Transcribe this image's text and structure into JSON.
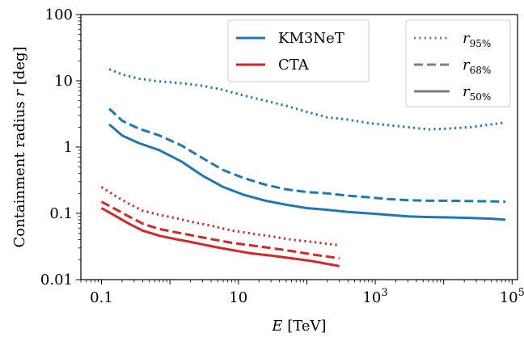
{
  "chart_data": {
    "type": "line",
    "xlabel": {
      "var": "E",
      "rest": " [TeV]"
    },
    "ylabel": {
      "pre": "Containment radius ",
      "var": "r",
      "post": " [deg]"
    },
    "xscale": "log",
    "yscale": "log",
    "xlim": [
      0.05,
      120000
    ],
    "ylim": [
      0.01,
      100
    ],
    "x_ticks": [
      {
        "value": 0.1,
        "label": "0.1"
      },
      {
        "value": 10,
        "label": "10"
      },
      {
        "value": 1000,
        "base": "10",
        "exp": "3"
      },
      {
        "value": 100000,
        "base": "10",
        "exp": "5"
      }
    ],
    "y_ticks": [
      {
        "value": 0.01,
        "label": "0.01"
      },
      {
        "value": 0.1,
        "label": "0.1"
      },
      {
        "value": 1,
        "label": "1"
      },
      {
        "value": 10,
        "label": "10"
      },
      {
        "value": 100,
        "label": "100"
      }
    ],
    "grid": false,
    "colors": {
      "KM3NeT": "#1f77b4",
      "CTA": "#d62728",
      "style_legend": "#808080"
    },
    "legend_experiment": {
      "placement": "top-center",
      "items": [
        {
          "label": "KM3NeT",
          "color": "#1f77b4"
        },
        {
          "label": "CTA",
          "color": "#d62728"
        }
      ]
    },
    "legend_linestyle": {
      "placement": "top-right",
      "items": [
        {
          "var": "r",
          "sub": "95%",
          "dash": "dotted"
        },
        {
          "var": "r",
          "sub": "68%",
          "dash": "dashed"
        },
        {
          "var": "r",
          "sub": "50%",
          "dash": "solid"
        }
      ]
    },
    "series": [
      {
        "experiment": "KM3NeT",
        "quantile": "r95",
        "dash": "dotted",
        "x": [
          0.13,
          0.2,
          0.35,
          0.7,
          1.5,
          3,
          6,
          12,
          25,
          50,
          100,
          200,
          400,
          800,
          1500,
          3000,
          6000,
          12000,
          25000,
          50000,
          80000
        ],
        "y": [
          15,
          12.5,
          10.8,
          9.8,
          9.2,
          8.4,
          7.3,
          6.0,
          5.0,
          4.2,
          3.4,
          2.8,
          2.6,
          2.3,
          2.15,
          2.0,
          1.85,
          1.9,
          2.0,
          2.2,
          2.35
        ]
      },
      {
        "experiment": "KM3NeT",
        "quantile": "r68",
        "dash": "dashed",
        "x": [
          0.13,
          0.2,
          0.35,
          0.7,
          1.5,
          3,
          6,
          12,
          25,
          50,
          100,
          200,
          400,
          800,
          1500,
          3000,
          6000,
          12000,
          25000,
          50000,
          80000
        ],
        "y": [
          3.8,
          2.5,
          1.9,
          1.5,
          1.05,
          0.68,
          0.45,
          0.34,
          0.27,
          0.23,
          0.21,
          0.2,
          0.185,
          0.175,
          0.165,
          0.158,
          0.155,
          0.155,
          0.153,
          0.152,
          0.15
        ]
      },
      {
        "experiment": "KM3NeT",
        "quantile": "r50",
        "dash": "solid",
        "x": [
          0.13,
          0.2,
          0.35,
          0.7,
          1.5,
          3,
          6,
          12,
          25,
          50,
          100,
          200,
          400,
          800,
          1500,
          3000,
          6000,
          12000,
          25000,
          50000,
          80000
        ],
        "y": [
          2.2,
          1.5,
          1.15,
          0.9,
          0.6,
          0.37,
          0.25,
          0.19,
          0.155,
          0.135,
          0.12,
          0.113,
          0.105,
          0.1,
          0.095,
          0.09,
          0.088,
          0.087,
          0.085,
          0.083,
          0.08
        ]
      },
      {
        "experiment": "CTA",
        "quantile": "r95",
        "dash": "dotted",
        "x": [
          0.1,
          0.15,
          0.25,
          0.4,
          0.7,
          1.2,
          2,
          4,
          8,
          15,
          30,
          60,
          120,
          300
        ],
        "y": [
          0.25,
          0.19,
          0.14,
          0.11,
          0.095,
          0.085,
          0.075,
          0.065,
          0.055,
          0.05,
          0.045,
          0.04,
          0.037,
          0.033
        ]
      },
      {
        "experiment": "CTA",
        "quantile": "r68",
        "dash": "dashed",
        "x": [
          0.1,
          0.15,
          0.25,
          0.4,
          0.7,
          1.2,
          2,
          4,
          8,
          15,
          30,
          60,
          120,
          300
        ],
        "y": [
          0.15,
          0.12,
          0.09,
          0.07,
          0.058,
          0.052,
          0.047,
          0.041,
          0.036,
          0.033,
          0.03,
          0.027,
          0.024,
          0.021
        ]
      },
      {
        "experiment": "CTA",
        "quantile": "r50",
        "dash": "solid",
        "x": [
          0.1,
          0.15,
          0.25,
          0.4,
          0.7,
          1.2,
          2,
          4,
          8,
          15,
          30,
          60,
          120,
          300
        ],
        "y": [
          0.12,
          0.095,
          0.07,
          0.055,
          0.046,
          0.041,
          0.037,
          0.032,
          0.028,
          0.025,
          0.023,
          0.021,
          0.019,
          0.016
        ]
      }
    ]
  }
}
